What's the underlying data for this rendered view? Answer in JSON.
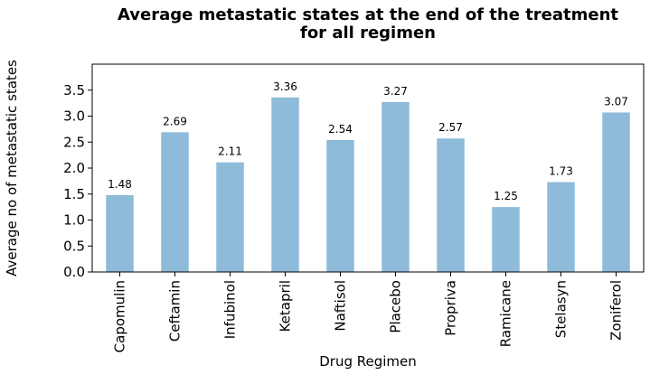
{
  "chart_data": {
    "type": "bar",
    "title_lines": [
      "Average metastatic states at the end of the treatment",
      "for all regimen"
    ],
    "xlabel": "Drug Regimen",
    "ylabel": "Average no of metastatic states",
    "categories": [
      "Capomulin",
      "Ceftamin",
      "Infubinol",
      "Ketapril",
      "Naftisol",
      "Placebo",
      "Propriva",
      "Ramicane",
      "Stelasyn",
      "Zoniferol"
    ],
    "values": [
      1.48,
      2.69,
      2.11,
      3.36,
      2.54,
      3.27,
      2.57,
      1.25,
      1.73,
      3.07
    ],
    "value_labels": [
      "1.48",
      "2.69",
      "2.11",
      "3.36",
      "2.54",
      "3.27",
      "2.57",
      "1.25",
      "1.73",
      "3.07"
    ],
    "ylim": [
      0,
      4.0
    ],
    "yticks": [
      0.0,
      0.5,
      1.0,
      1.5,
      2.0,
      2.5,
      3.0,
      3.5
    ],
    "ytick_labels": [
      "0.0",
      "0.5",
      "1.0",
      "1.5",
      "2.0",
      "2.5",
      "3.0",
      "3.5"
    ],
    "bar_color": "#8fbbda",
    "grid": false,
    "legend": "none"
  }
}
